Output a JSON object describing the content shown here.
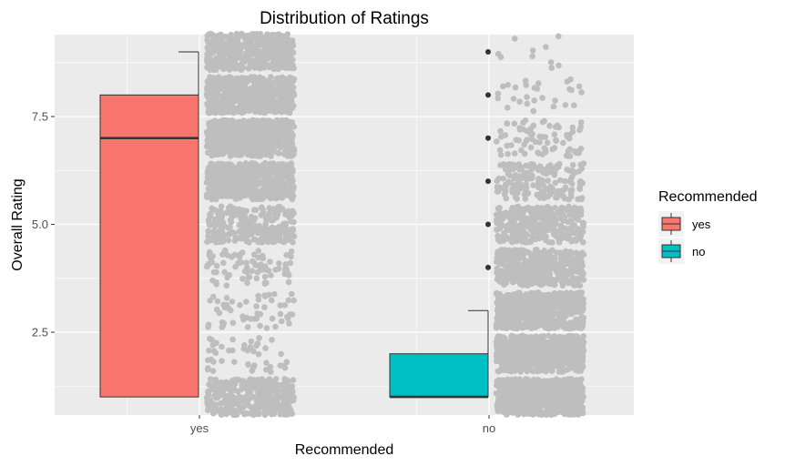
{
  "chart_data": {
    "type": "boxplot",
    "title": "Distribution of Ratings",
    "xlabel": "Recommended",
    "ylabel": "Overall Rating",
    "categories": [
      "yes",
      "no"
    ],
    "ylim": [
      0.58,
      9.4
    ],
    "y_ticks": [
      2.5,
      5.0,
      7.5
    ],
    "y_tick_labels": [
      "2.5",
      "5.0",
      "7.5"
    ],
    "grid": true,
    "legend": {
      "title": "Recommended",
      "placement": "right",
      "entries": [
        {
          "label": "yes",
          "color": "#f8766d"
        },
        {
          "label": "no",
          "color": "#00bfc4"
        }
      ]
    },
    "boxes": [
      {
        "name": "yes",
        "color": "#f8766d",
        "min": 1,
        "q1": 1,
        "median": 7,
        "q3": 8,
        "max": 9,
        "outliers": []
      },
      {
        "name": "no",
        "color": "#00bfc4",
        "min": 1,
        "q1": 1,
        "median": 1,
        "q3": 2,
        "max": 3,
        "outliers": [
          4,
          5,
          6,
          7,
          8,
          9
        ]
      }
    ],
    "jitter": {
      "color": "#bebebe",
      "yes": {
        "1": 360,
        "2": 45,
        "3": 55,
        "4": 80,
        "5": 260,
        "6": 520,
        "7": 600,
        "8": 560,
        "9": 420
      },
      "no": {
        "1": 600,
        "2": 560,
        "3": 520,
        "4": 420,
        "5": 300,
        "6": 170,
        "7": 75,
        "8": 28,
        "9": 10
      }
    }
  }
}
